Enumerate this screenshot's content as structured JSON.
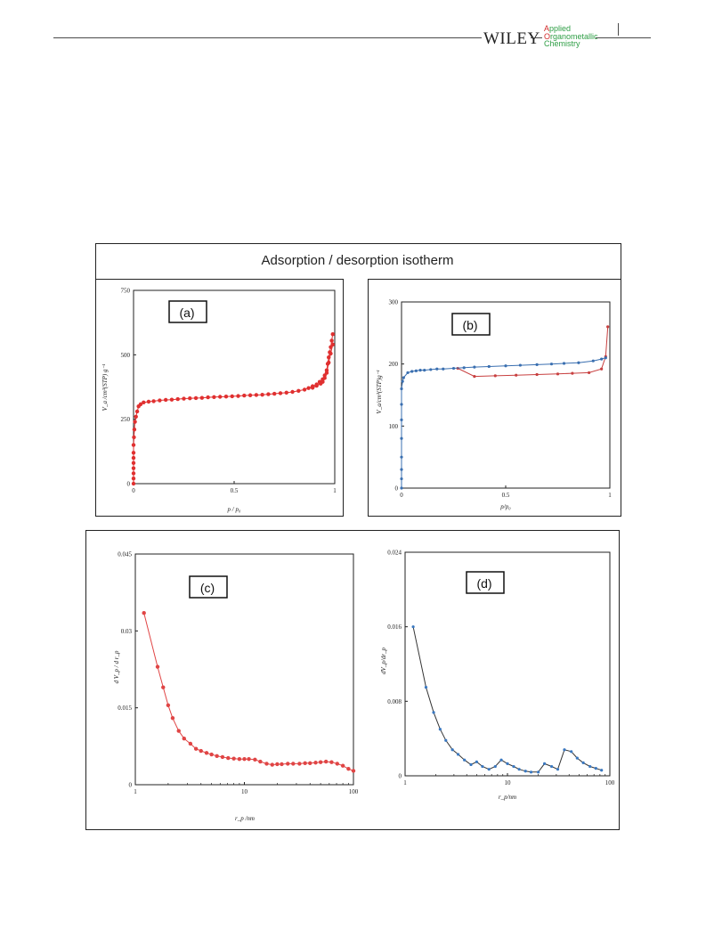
{
  "header": {
    "publisher": "WILEY",
    "journal_lines": [
      {
        "cap": "A",
        "rest": "pplied"
      },
      {
        "cap": "O",
        "rest": "rganometallic"
      },
      {
        "cap": "",
        "rest": "Chemistry"
      }
    ]
  },
  "figure": {
    "title": "Adsorption / desorption isotherm"
  },
  "chart_data": [
    {
      "id": "a",
      "panel_label": "(a)",
      "type": "line",
      "xlabel": "p / p₀",
      "ylabel": "V_a /cm³(STP) g⁻¹",
      "xlim": [
        0,
        1
      ],
      "ylim": [
        0,
        750
      ],
      "xticks": [
        "0",
        "0.5",
        "1"
      ],
      "yticks": [
        "0",
        "250",
        "500",
        "750"
      ],
      "series": [
        {
          "color": "#e03030",
          "x": [
            0,
            0,
            0,
            0,
            0,
            0,
            0,
            0,
            0.002,
            0.004,
            0.007,
            0.012,
            0.018,
            0.025,
            0.035,
            0.05,
            0.075,
            0.1,
            0.13,
            0.16,
            0.19,
            0.22,
            0.25,
            0.28,
            0.31,
            0.34,
            0.37,
            0.4,
            0.43,
            0.46,
            0.49,
            0.52,
            0.55,
            0.58,
            0.61,
            0.64,
            0.67,
            0.7,
            0.73,
            0.76,
            0.79,
            0.82,
            0.85,
            0.87,
            0.89,
            0.91,
            0.925,
            0.94,
            0.95,
            0.96,
            0.965,
            0.97,
            0.975,
            0.98,
            0.985,
            0.99
          ],
          "y": [
            0,
            20,
            40,
            60,
            80,
            100,
            120,
            150,
            180,
            210,
            240,
            260,
            280,
            300,
            308,
            315,
            318,
            320,
            323,
            325,
            326,
            328,
            330,
            331,
            332,
            333,
            335,
            336,
            337,
            338,
            339,
            340,
            342,
            343,
            344,
            345,
            347,
            349,
            351,
            353,
            356,
            360,
            365,
            371,
            378,
            385,
            395,
            405,
            420,
            440,
            465,
            490,
            510,
            530,
            555,
            580
          ]
        },
        {
          "color": "#e03030",
          "x": [
            0.99,
            0.98,
            0.97,
            0.96,
            0.95,
            0.94,
            0.93,
            0.91,
            0.89
          ],
          "y": [
            540,
            505,
            470,
            430,
            410,
            395,
            388,
            380,
            372
          ]
        }
      ]
    },
    {
      "id": "b",
      "panel_label": "(b)",
      "type": "line",
      "xlabel": "p/p₀",
      "ylabel": "V_a/cm³(STP)g⁻¹",
      "xlim": [
        0,
        1
      ],
      "ylim": [
        0,
        300
      ],
      "xticks": [
        "0",
        "0.5",
        "1"
      ],
      "yticks": [
        "0",
        "100",
        "200",
        "300"
      ],
      "series": [
        {
          "color": "#c84040",
          "x": [
            0.27,
            0.35,
            0.45,
            0.55,
            0.65,
            0.75,
            0.82,
            0.9,
            0.96,
            0.98,
            0.99
          ],
          "y": [
            193,
            180,
            181,
            182,
            183,
            184,
            185,
            186,
            192,
            212,
            260
          ]
        },
        {
          "color": "#3a6fb0",
          "x": [
            0,
            0,
            0,
            0,
            0,
            0,
            0,
            0,
            0.005,
            0.01,
            0.03,
            0.05,
            0.07,
            0.09,
            0.11,
            0.14,
            0.17,
            0.2,
            0.25,
            0.3,
            0.35,
            0.42,
            0.5,
            0.57,
            0.65,
            0.72,
            0.78,
            0.85,
            0.92,
            0.96,
            0.98
          ],
          "y": [
            0,
            15,
            30,
            50,
            80,
            110,
            135,
            160,
            172,
            178,
            186,
            188,
            189,
            190,
            190,
            191,
            192,
            192,
            193,
            194,
            195,
            196,
            197,
            198,
            199,
            200,
            201,
            202,
            205,
            208,
            210
          ]
        }
      ]
    },
    {
      "id": "c",
      "panel_label": "(c)",
      "type": "line",
      "xscale": "log",
      "xlabel": "r_p /nm",
      "ylabel": "d V_p / d r_p",
      "xlim": [
        1,
        100
      ],
      "ylim": [
        0,
        0.045
      ],
      "xticks": [
        "1",
        "10",
        "100"
      ],
      "yticks": [
        "0",
        "0.015",
        "0.03",
        "0.045"
      ],
      "series": [
        {
          "color": "#e04545",
          "x": [
            1.2,
            1.6,
            1.8,
            2.0,
            2.2,
            2.5,
            2.8,
            3.2,
            3.6,
            4.0,
            4.5,
            5.0,
            5.6,
            6.3,
            7.1,
            8.0,
            9.0,
            10,
            11,
            12.5,
            14,
            16,
            18,
            20,
            22,
            25,
            28,
            32,
            36,
            40,
            45,
            50,
            56,
            63,
            71,
            80,
            90,
            100
          ],
          "y": [
            0.0335,
            0.023,
            0.019,
            0.0155,
            0.013,
            0.0105,
            0.009,
            0.008,
            0.007,
            0.0066,
            0.0062,
            0.0059,
            0.0056,
            0.0054,
            0.0052,
            0.0051,
            0.005,
            0.005,
            0.005,
            0.0049,
            0.0045,
            0.0041,
            0.0039,
            0.004,
            0.004,
            0.0041,
            0.0041,
            0.0041,
            0.0042,
            0.0042,
            0.0043,
            0.0044,
            0.0045,
            0.0044,
            0.0041,
            0.0037,
            0.0031,
            0.0027
          ]
        }
      ]
    },
    {
      "id": "d",
      "panel_label": "(d)",
      "type": "line",
      "xscale": "log",
      "xlabel": "r_p/nm",
      "ylabel": "dV_p/dr_p",
      "xlim": [
        1,
        100
      ],
      "ylim": [
        0,
        0.024
      ],
      "xticks": [
        "1",
        "10",
        "100"
      ],
      "yticks": [
        "0",
        "0.008",
        "0.016",
        "0.024"
      ],
      "series": [
        {
          "color": "#333333",
          "marker_color": "#3a78c0",
          "x": [
            1.2,
            1.6,
            1.9,
            2.2,
            2.5,
            2.9,
            3.3,
            3.8,
            4.4,
            5.0,
            5.7,
            6.6,
            7.6,
            8.7,
            10,
            11.5,
            13,
            15,
            17,
            20,
            23,
            27,
            31,
            36,
            42,
            48,
            55,
            64,
            73,
            83
          ],
          "y": [
            0.016,
            0.0095,
            0.0068,
            0.005,
            0.0038,
            0.0028,
            0.0023,
            0.0017,
            0.0012,
            0.0015,
            0.001,
            0.0007,
            0.001,
            0.0017,
            0.0013,
            0.001,
            0.0007,
            0.0005,
            0.0004,
            0.0004,
            0.0013,
            0.001,
            0.0007,
            0.0028,
            0.0026,
            0.0019,
            0.0014,
            0.001,
            0.0008,
            0.0006
          ]
        }
      ]
    }
  ]
}
